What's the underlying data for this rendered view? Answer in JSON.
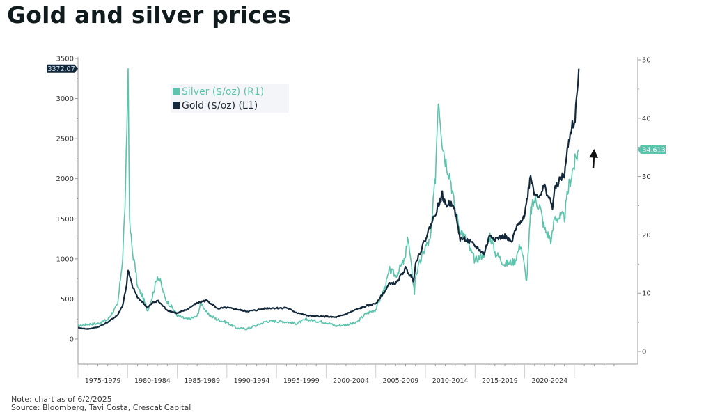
{
  "page": {
    "title": "Gold and silver prices",
    "note": "Note: chart as of 6/2/2025",
    "source": "Source: Bloomberg, Tavi Costa, Crescat Capital"
  },
  "chart_data": {
    "type": "line",
    "title": "Gold and silver prices",
    "xlabel": "",
    "ylabel_left": "Gold ($/oz)",
    "ylabel_right": "Silver ($/oz)",
    "x_range": [
      1975,
      2025.5
    ],
    "ylim_left": [
      -250,
      3500
    ],
    "ylim_right": [
      -0.3,
      50
    ],
    "yticks_left": [
      0,
      500,
      1000,
      1500,
      2000,
      2500,
      3000,
      3500
    ],
    "yticks_right": [
      0,
      10,
      20,
      30,
      40,
      50
    ],
    "x_tick_labels": [
      "1975-1979",
      "1980-1984",
      "1985-1989",
      "1990-1994",
      "1995-1999",
      "2000-2004",
      "2005-2009",
      "2010-2014",
      "2015-2019",
      "2020-2024"
    ],
    "x_band_starts": [
      1975,
      1980,
      1985,
      1990,
      1995,
      2000,
      2005,
      2010,
      2015,
      2020,
      2025
    ],
    "grid": false,
    "legend_position": "top-left",
    "legend": [
      "Silver ($/oz) (R1)",
      "Gold ($/oz) (L1)"
    ],
    "last_value_labels": {
      "gold": "3372.07",
      "silver": "34.613"
    },
    "annotation": "up-arrow",
    "colors": {
      "gold": "#13283a",
      "silver": "#5cc4ac",
      "axis": "#9a9a9a",
      "text": "#333333"
    },
    "series": [
      {
        "name": "Silver ($/oz) (R1)",
        "axis": "right",
        "x": [
          1975,
          1976,
          1977,
          1978,
          1979,
          1979.5,
          1979.8,
          1980.05,
          1980.2,
          1980.5,
          1980.8,
          1981,
          1981.5,
          1982,
          1982.5,
          1983,
          1983.3,
          1983.8,
          1984.5,
          1985,
          1986,
          1987,
          1987.4,
          1988,
          1989,
          1990,
          1991,
          1992,
          1993,
          1994,
          1995,
          1996,
          1997,
          1998,
          1999,
          2000,
          2001,
          2002,
          2003,
          2004,
          2005,
          2006,
          2006.4,
          2007,
          2008,
          2008.2,
          2008.9,
          2009,
          2010,
          2010.5,
          2011,
          2011.3,
          2011.7,
          2012,
          2012.5,
          2013,
          2013.5,
          2014,
          2015,
          2016,
          2016.5,
          2017,
          2018,
          2019,
          2019.6,
          2020.2,
          2020.6,
          2021,
          2021.5,
          2022,
          2022.7,
          2023,
          2023.5,
          2024,
          2024.4,
          2024.8,
          2025,
          2025.4
        ],
        "values": [
          4.4,
          4.7,
          4.8,
          5.5,
          8,
          16,
          28,
          49,
          22,
          17,
          14,
          11,
          9.5,
          7,
          9.5,
          13,
          12,
          9,
          7.5,
          6.2,
          5.5,
          6,
          8.5,
          6.5,
          5.5,
          5,
          4,
          3.9,
          4.5,
          5.2,
          5.2,
          5.1,
          4.8,
          5.5,
          5.2,
          5,
          4.4,
          4.6,
          4.9,
          6.5,
          7.2,
          11.5,
          14,
          13,
          16,
          20,
          10,
          13,
          18,
          19,
          30,
          44,
          36,
          33,
          30,
          24,
          21,
          19.5,
          15.5,
          17,
          20,
          17,
          15,
          15.5,
          18.5,
          12,
          24,
          26,
          25,
          21,
          19,
          23,
          23,
          23,
          28,
          31,
          32,
          34.6
        ]
      },
      {
        "name": "Gold ($/oz) (L1)",
        "axis": "left",
        "x": [
          1975,
          1976,
          1977,
          1978,
          1979,
          1979.5,
          1979.9,
          1980.05,
          1980.5,
          1981,
          1981.5,
          1982,
          1982.5,
          1983,
          1984,
          1985,
          1986,
          1987,
          1987.9,
          1988.5,
          1989,
          1990,
          1991,
          1992,
          1993,
          1994,
          1995,
          1996,
          1997,
          1998,
          1999,
          2000,
          2001,
          2002,
          2003,
          2004,
          2005,
          2006,
          2006.4,
          2007,
          2008,
          2008.8,
          2009,
          2010,
          2011,
          2011.7,
          2012,
          2012.8,
          2013.5,
          2014,
          2015,
          2015.9,
          2016.5,
          2017,
          2018,
          2018.7,
          2019,
          2019.6,
          2020,
          2020.6,
          2021,
          2021.5,
          2022,
          2022.8,
          2023,
          2023.5,
          2024,
          2024.3,
          2024.8,
          2025,
          2025.3,
          2025.45
        ],
        "values": [
          140,
          125,
          148,
          210,
          300,
          420,
          680,
          850,
          650,
          520,
          460,
          390,
          450,
          480,
          360,
          320,
          370,
          450,
          480,
          440,
          380,
          390,
          370,
          345,
          360,
          385,
          385,
          390,
          330,
          295,
          285,
          280,
          270,
          310,
          365,
          410,
          445,
          610,
          700,
          690,
          880,
          730,
          940,
          1250,
          1570,
          1800,
          1670,
          1700,
          1250,
          1250,
          1160,
          1060,
          1300,
          1250,
          1280,
          1200,
          1340,
          1480,
          1550,
          2050,
          1800,
          1800,
          1900,
          1650,
          1850,
          1980,
          2050,
          2350,
          2700,
          2650,
          3100,
          3372.07
        ]
      }
    ]
  }
}
